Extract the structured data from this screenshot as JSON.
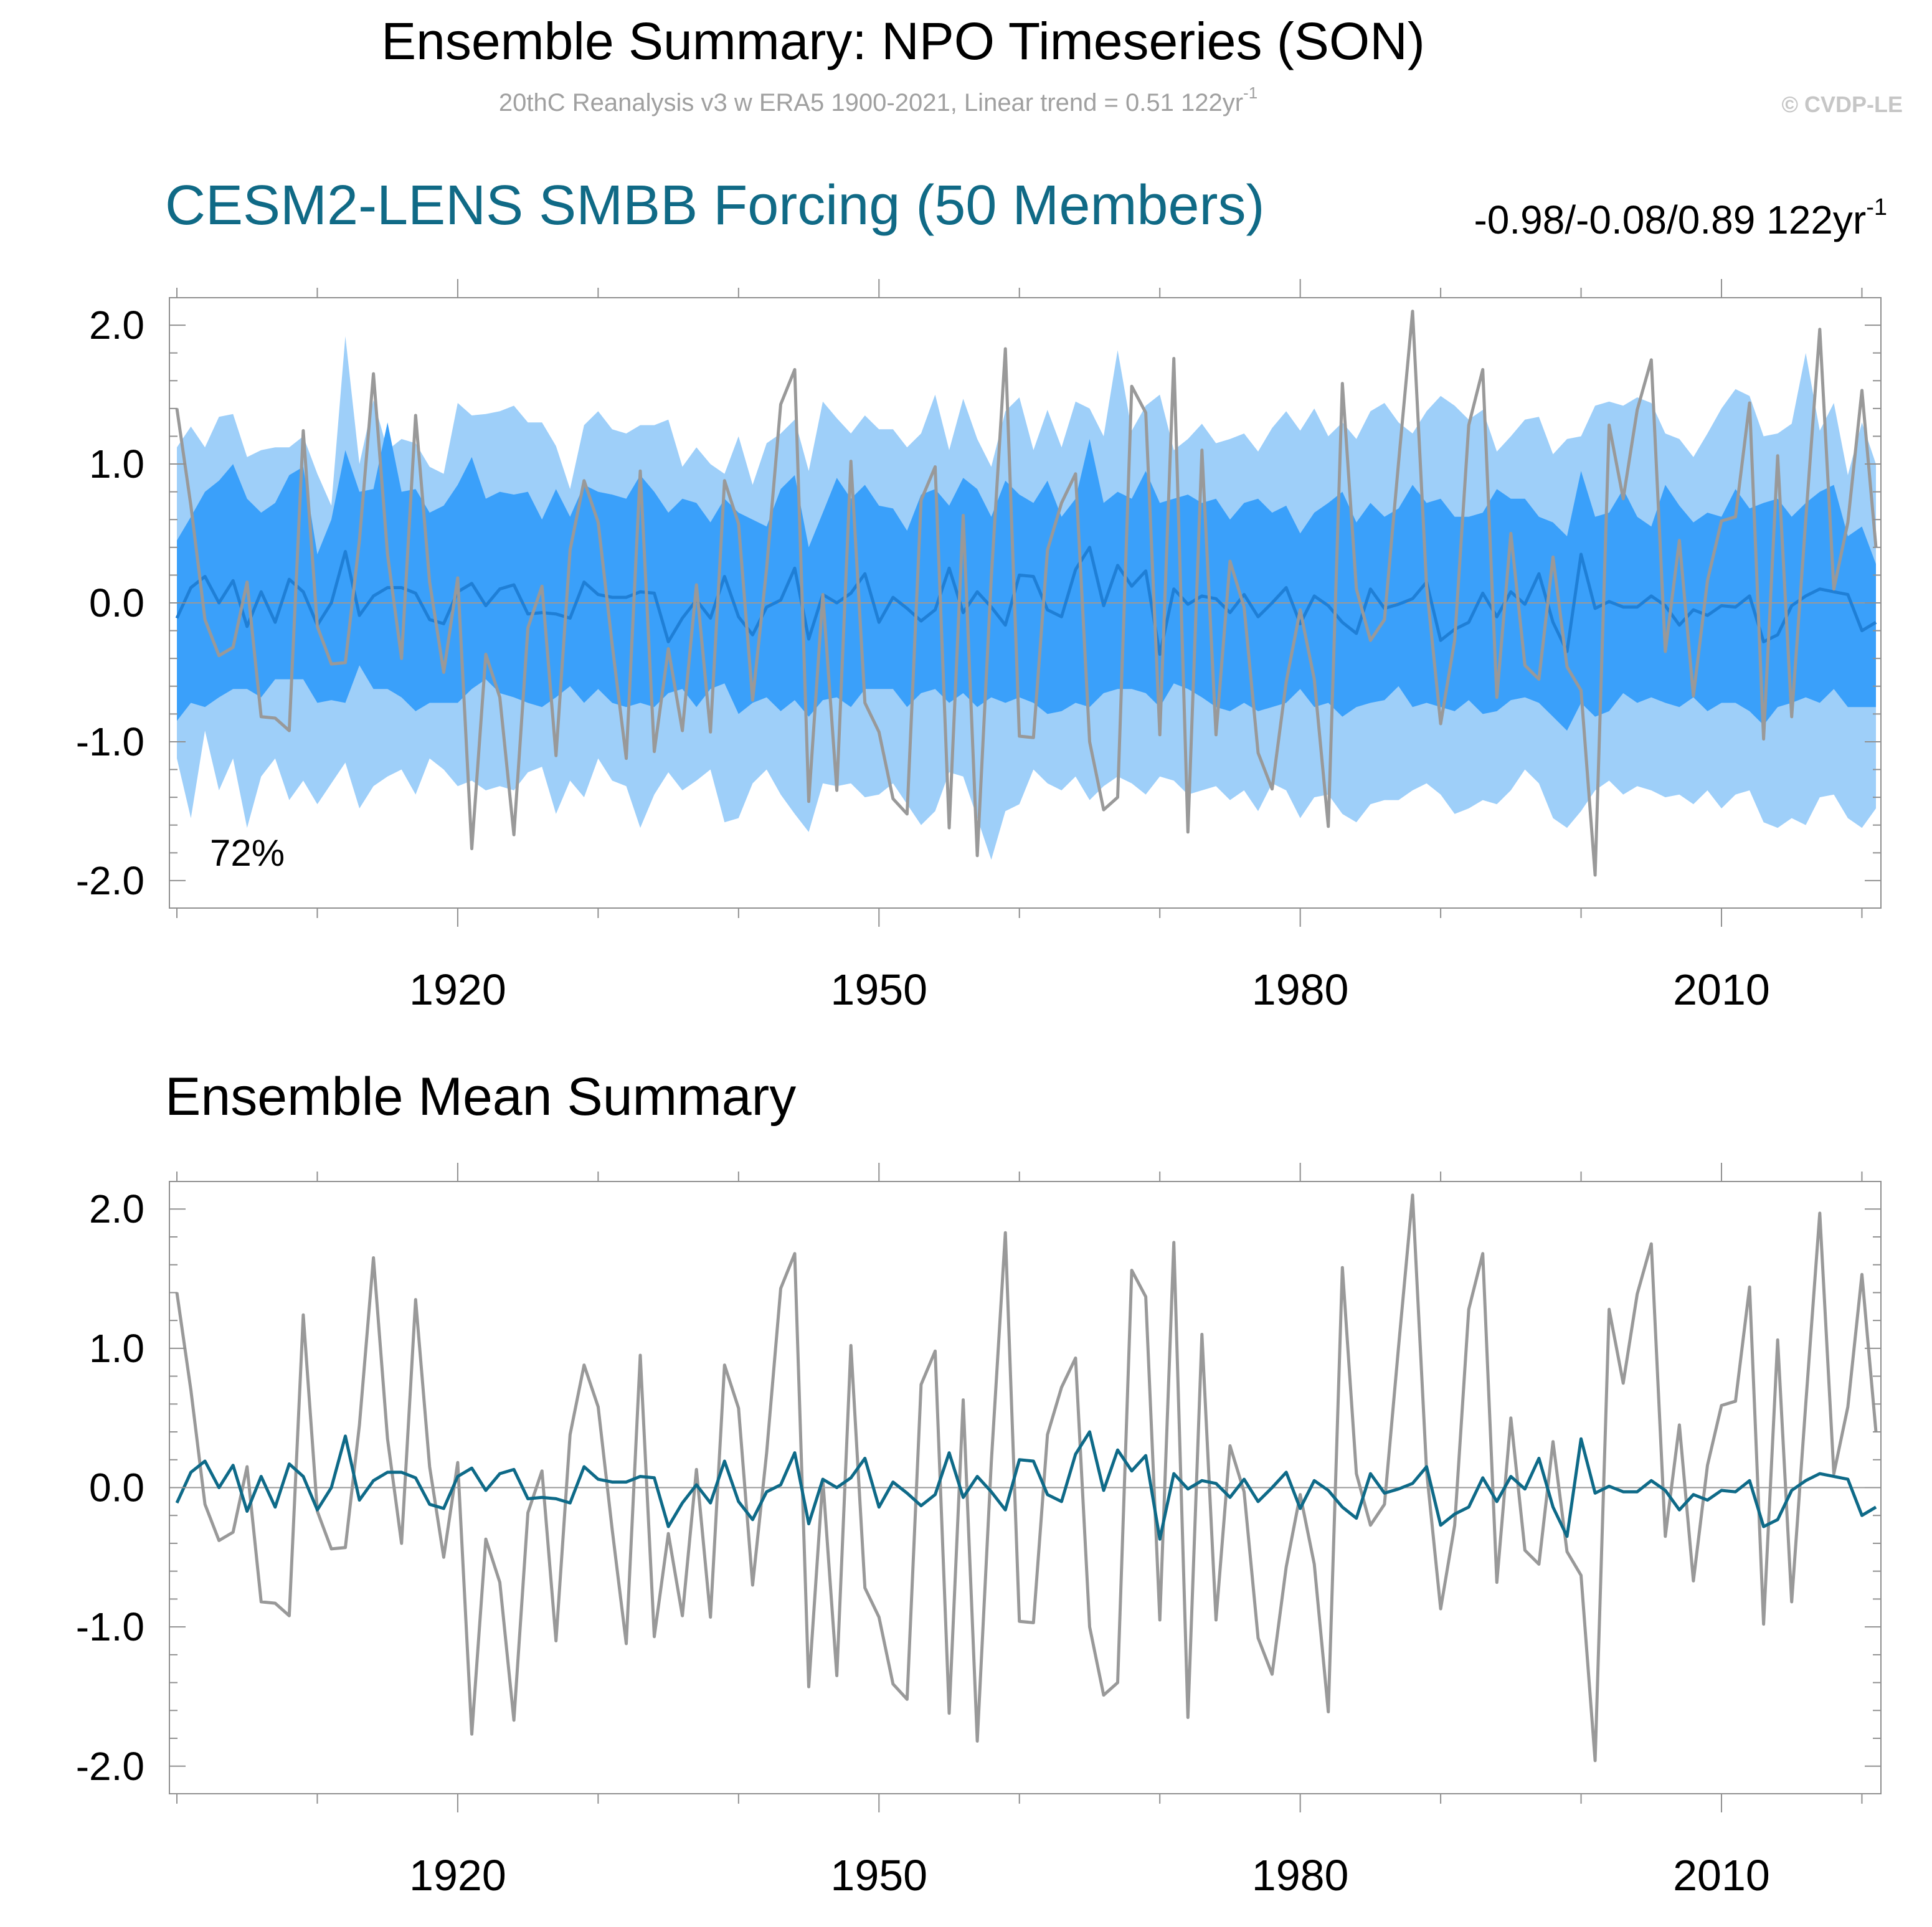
{
  "header": {
    "title": "Ensemble Summary: NPO Timeseries (SON)",
    "subtitle_main": "20thC Reanalysis v3 w ERA5 1900-2021, Linear trend = 0.51 122yr",
    "subtitle_sup": "-1",
    "copyright": "© CVDP-LE"
  },
  "colors": {
    "observed": "#999999",
    "spread_outer": "#9ecff9",
    "spread_inner": "#3aa0fa",
    "ens_mean_top": "#1f7fd6",
    "ens_mean_bottom": "#0e6a88",
    "title_blue": "#106a86",
    "zero_line": "#999999",
    "axis": "#909090"
  },
  "chart_data": [
    {
      "type": "area",
      "title": "CESM2-LENS SMBB Forcing (50 Members)",
      "trend_text": "-0.98/-0.08/0.89 122yr",
      "trend_sup": "-1",
      "annotation": "72%",
      "xlim": [
        1900,
        2021
      ],
      "ylim": [
        -2.0,
        2.0
      ],
      "xticks": [
        1920,
        1950,
        1980,
        2010
      ],
      "yticks": [
        2.0,
        1.0,
        0.0,
        -1.0,
        -2.0
      ],
      "ytick_labels": [
        "2.0",
        "1.0",
        "0.0",
        "-1.0",
        "-2.0"
      ],
      "xtick_labels": [
        "1920",
        "1950",
        "1980",
        "2010"
      ],
      "x_start": 1900,
      "x_step": 1,
      "observed_name": "20thC Reanalysis v3 w ERA5",
      "observed": [
        1.4,
        0.7,
        -0.12,
        -0.38,
        -0.32,
        0.15,
        -0.82,
        -0.83,
        -0.92,
        1.24,
        -0.17,
        -0.44,
        -0.43,
        0.45,
        1.65,
        0.35,
        -0.4,
        1.35,
        0.15,
        -0.5,
        0.18,
        -1.77,
        -0.37,
        -0.68,
        -1.67,
        -0.18,
        0.12,
        -1.1,
        0.38,
        0.88,
        0.58,
        -0.3,
        -1.12,
        0.95,
        -1.07,
        -0.33,
        -0.92,
        0.13,
        -0.93,
        0.88,
        0.57,
        -0.7,
        0.25,
        1.43,
        1.68,
        -1.43,
        0.06,
        -1.35,
        1.02,
        -0.72,
        -0.93,
        -1.41,
        -1.52,
        0.74,
        0.98,
        -1.62,
        0.63,
        -1.82,
        0.18,
        1.83,
        -0.96,
        -0.97,
        0.38,
        0.72,
        0.93,
        -1.0,
        -1.49,
        -1.4,
        1.56,
        1.37,
        -0.95,
        1.76,
        -1.65,
        1.1,
        -0.95,
        0.3,
        -0.03,
        -1.08,
        -1.34,
        -0.57,
        -0.05,
        -0.55,
        -1.61,
        1.58,
        0.1,
        -0.27,
        -0.12,
        1.01,
        2.1,
        0.12,
        -0.87,
        -0.27,
        1.28,
        1.68,
        -0.68,
        0.5,
        -0.45,
        -0.55,
        0.33,
        -0.46,
        -0.63,
        -1.96,
        1.28,
        0.75,
        1.39,
        1.75,
        -0.35,
        0.45,
        -0.67,
        0.16,
        0.59,
        0.62,
        1.44,
        -0.98,
        1.06,
        -0.82,
        0.6,
        1.97,
        0.1,
        0.58,
        1.53,
        0.4
      ],
      "ensemble_mean": [
        -0.11,
        0.11,
        0.19,
        0.0,
        0.16,
        -0.17,
        0.08,
        -0.14,
        0.17,
        0.08,
        -0.16,
        0.0,
        0.37,
        -0.09,
        0.05,
        0.11,
        0.11,
        0.07,
        -0.12,
        -0.15,
        0.08,
        0.14,
        -0.02,
        0.1,
        0.13,
        -0.08,
        -0.07,
        -0.08,
        -0.11,
        0.15,
        0.06,
        0.04,
        0.04,
        0.08,
        0.07,
        -0.28,
        -0.11,
        0.02,
        -0.11,
        0.19,
        -0.1,
        -0.23,
        -0.03,
        0.02,
        0.25,
        -0.26,
        0.06,
        0.0,
        0.07,
        0.21,
        -0.14,
        0.04,
        -0.04,
        -0.13,
        -0.05,
        0.25,
        -0.07,
        0.08,
        -0.03,
        -0.16,
        0.2,
        0.19,
        -0.05,
        -0.1,
        0.24,
        0.4,
        -0.02,
        0.27,
        0.12,
        0.23,
        -0.37,
        0.1,
        -0.01,
        0.05,
        0.03,
        -0.07,
        0.06,
        -0.1,
        0.0,
        0.11,
        -0.15,
        0.05,
        -0.02,
        -0.14,
        -0.22,
        0.1,
        -0.04,
        -0.01,
        0.03,
        0.15,
        -0.27,
        -0.19,
        -0.14,
        0.07,
        -0.1,
        0.08,
        -0.01,
        0.21,
        -0.14,
        -0.35,
        0.35,
        -0.04,
        0.01,
        -0.03,
        -0.03,
        0.05,
        -0.02,
        -0.16,
        -0.05,
        -0.09,
        -0.02,
        -0.03,
        0.05,
        -0.28,
        -0.23,
        -0.02,
        0.05,
        0.1,
        0.08,
        0.06,
        -0.2,
        -0.14
      ],
      "band_outer_upper": [
        1.12,
        1.27,
        1.12,
        1.34,
        1.36,
        1.05,
        1.1,
        1.12,
        1.12,
        1.2,
        0.93,
        0.7,
        1.92,
        1.0,
        1.46,
        1.1,
        1.18,
        1.15,
        0.98,
        0.93,
        1.44,
        1.35,
        1.36,
        1.38,
        1.42,
        1.3,
        1.3,
        1.13,
        0.82,
        1.28,
        1.38,
        1.25,
        1.22,
        1.28,
        1.28,
        1.32,
        0.98,
        1.12,
        1.0,
        0.93,
        1.2,
        0.85,
        1.15,
        1.22,
        1.32,
        0.95,
        1.45,
        1.33,
        1.22,
        1.35,
        1.25,
        1.25,
        1.12,
        1.22,
        1.5,
        1.1,
        1.47,
        1.18,
        0.98,
        1.38,
        1.48,
        1.1,
        1.39,
        1.12,
        1.45,
        1.4,
        1.2,
        1.82,
        1.24,
        1.42,
        1.5,
        1.1,
        1.18,
        1.29,
        1.15,
        1.18,
        1.22,
        1.09,
        1.26,
        1.38,
        1.24,
        1.4,
        1.2,
        1.3,
        1.18,
        1.38,
        1.44,
        1.3,
        1.22,
        1.38,
        1.49,
        1.42,
        1.32,
        1.39,
        1.09,
        1.2,
        1.32,
        1.34,
        1.07,
        1.18,
        1.2,
        1.42,
        1.45,
        1.42,
        1.48,
        1.44,
        1.22,
        1.18,
        1.05,
        1.22,
        1.4,
        1.54,
        1.49,
        1.2,
        1.22,
        1.29,
        1.8,
        1.24,
        1.44,
        0.92,
        1.3,
        1.0
      ],
      "band_inner_upper": [
        0.45,
        0.62,
        0.8,
        0.88,
        1.0,
        0.75,
        0.65,
        0.72,
        0.92,
        0.98,
        0.35,
        0.6,
        1.1,
        0.8,
        0.82,
        1.3,
        0.8,
        0.82,
        0.65,
        0.7,
        0.85,
        1.05,
        0.75,
        0.8,
        0.78,
        0.8,
        0.6,
        0.82,
        0.62,
        0.85,
        0.8,
        0.78,
        0.75,
        0.92,
        0.8,
        0.65,
        0.75,
        0.72,
        0.58,
        0.75,
        0.65,
        0.6,
        0.55,
        0.82,
        0.92,
        0.4,
        0.65,
        0.9,
        0.75,
        0.85,
        0.7,
        0.68,
        0.52,
        0.78,
        0.82,
        0.7,
        0.9,
        0.82,
        0.62,
        0.88,
        0.78,
        0.72,
        0.88,
        0.62,
        0.75,
        1.18,
        0.72,
        0.8,
        0.75,
        0.95,
        0.72,
        0.75,
        0.78,
        0.72,
        0.75,
        0.6,
        0.72,
        0.75,
        0.65,
        0.7,
        0.5,
        0.65,
        0.72,
        0.8,
        0.58,
        0.72,
        0.62,
        0.68,
        0.85,
        0.72,
        0.75,
        0.62,
        0.62,
        0.65,
        0.82,
        0.75,
        0.75,
        0.62,
        0.58,
        0.48,
        0.95,
        0.62,
        0.65,
        0.82,
        0.62,
        0.55,
        0.85,
        0.7,
        0.58,
        0.65,
        0.62,
        0.82,
        0.68,
        0.72,
        0.75,
        0.62,
        0.72,
        0.8,
        0.85,
        0.48,
        0.55,
        0.28
      ],
      "band_inner_lower": [
        -0.85,
        -0.72,
        -0.75,
        -0.68,
        -0.62,
        -0.62,
        -0.68,
        -0.55,
        -0.55,
        -0.55,
        -0.72,
        -0.7,
        -0.72,
        -0.45,
        -0.62,
        -0.62,
        -0.68,
        -0.78,
        -0.72,
        -0.72,
        -0.72,
        -0.62,
        -0.55,
        -0.65,
        -0.68,
        -0.72,
        -0.75,
        -0.68,
        -0.6,
        -0.72,
        -0.62,
        -0.72,
        -0.75,
        -0.72,
        -0.75,
        -0.65,
        -0.62,
        -0.75,
        -0.62,
        -0.58,
        -0.8,
        -0.72,
        -0.68,
        -0.78,
        -0.7,
        -0.82,
        -0.7,
        -0.68,
        -0.75,
        -0.62,
        -0.62,
        -0.62,
        -0.75,
        -0.65,
        -0.62,
        -0.72,
        -0.65,
        -0.75,
        -0.68,
        -0.72,
        -0.68,
        -0.72,
        -0.8,
        -0.78,
        -0.72,
        -0.75,
        -0.65,
        -0.62,
        -0.62,
        -0.65,
        -0.75,
        -0.58,
        -0.62,
        -0.68,
        -0.75,
        -0.78,
        -0.72,
        -0.78,
        -0.75,
        -0.72,
        -0.62,
        -0.75,
        -0.72,
        -0.82,
        -0.75,
        -0.72,
        -0.7,
        -0.6,
        -0.75,
        -0.72,
        -0.75,
        -0.78,
        -0.7,
        -0.8,
        -0.78,
        -0.7,
        -0.68,
        -0.72,
        -0.82,
        -0.92,
        -0.72,
        -0.82,
        -0.78,
        -0.65,
        -0.72,
        -0.68,
        -0.72,
        -0.75,
        -0.68,
        -0.78,
        -0.72,
        -0.72,
        -0.78,
        -0.88,
        -0.75,
        -0.72,
        -0.68,
        -0.72,
        -0.62,
        -0.75,
        -0.75,
        -0.75
      ],
      "band_outer_lower": [
        -1.12,
        -1.55,
        -0.92,
        -1.35,
        -1.12,
        -1.62,
        -1.25,
        -1.12,
        -1.42,
        -1.28,
        -1.45,
        -1.3,
        -1.15,
        -1.48,
        -1.32,
        -1.25,
        -1.2,
        -1.38,
        -1.12,
        -1.2,
        -1.32,
        -1.28,
        -1.35,
        -1.32,
        -1.35,
        -1.22,
        -1.18,
        -1.52,
        -1.28,
        -1.4,
        -1.12,
        -1.28,
        -1.32,
        -1.62,
        -1.38,
        -1.22,
        -1.35,
        -1.28,
        -1.2,
        -1.58,
        -1.55,
        -1.3,
        -1.2,
        -1.38,
        -1.52,
        -1.65,
        -1.3,
        -1.32,
        -1.3,
        -1.4,
        -1.38,
        -1.3,
        -1.45,
        -1.6,
        -1.5,
        -1.22,
        -1.25,
        -1.55,
        -1.85,
        -1.5,
        -1.45,
        -1.2,
        -1.3,
        -1.35,
        -1.25,
        -1.42,
        -1.32,
        -1.25,
        -1.3,
        -1.38,
        -1.25,
        -1.28,
        -1.38,
        -1.35,
        -1.32,
        -1.42,
        -1.35,
        -1.5,
        -1.3,
        -1.35,
        -1.55,
        -1.4,
        -1.38,
        -1.52,
        -1.58,
        -1.45,
        -1.42,
        -1.42,
        -1.35,
        -1.3,
        -1.38,
        -1.52,
        -1.48,
        -1.42,
        -1.45,
        -1.35,
        -1.2,
        -1.3,
        -1.55,
        -1.62,
        -1.5,
        -1.35,
        -1.28,
        -1.38,
        -1.32,
        -1.35,
        -1.4,
        -1.38,
        -1.45,
        -1.35,
        -1.48,
        -1.38,
        -1.35,
        -1.58,
        -1.62,
        -1.55,
        -1.6,
        -1.4,
        -1.38,
        -1.55,
        -1.62,
        -1.48
      ]
    },
    {
      "type": "line",
      "title": "Ensemble Mean Summary",
      "xlim": [
        1900,
        2021
      ],
      "ylim": [
        -2.0,
        2.0
      ],
      "xticks": [
        1920,
        1950,
        1980,
        2010
      ],
      "yticks": [
        2.0,
        1.0,
        0.0,
        -1.0,
        -2.0
      ],
      "ytick_labels": [
        "2.0",
        "1.0",
        "0.0",
        "-1.0",
        "-2.0"
      ],
      "xtick_labels": [
        "1920",
        "1950",
        "1980",
        "2010"
      ],
      "series_ref": [
        "observed",
        "ensemble_mean"
      ]
    }
  ]
}
